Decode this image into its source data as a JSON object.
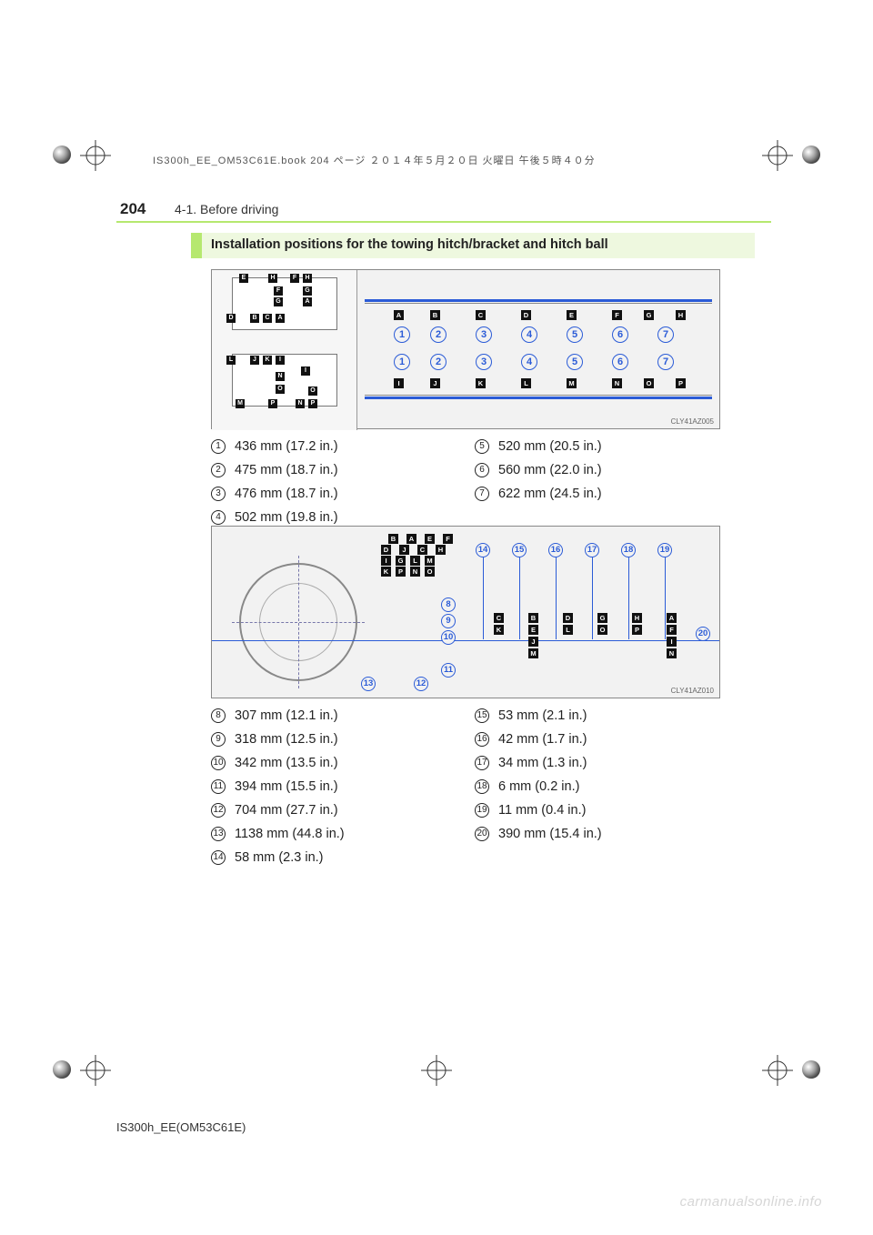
{
  "header_jp": "IS300h_EE_OM53C61E.book  204 ページ  ２０１４年５月２０日  火曜日  午後５時４０分",
  "page_number": "204",
  "section": "4-1. Before driving",
  "heading": "Installation positions for the towing hitch/bracket and hitch ball",
  "fig1": {
    "code": "CLY41AZ005",
    "top_letters": [
      "A",
      "B",
      "C",
      "D",
      "E",
      "F",
      "G",
      "H"
    ],
    "bot_letters": [
      "I",
      "J",
      "K",
      "L",
      "M",
      "N",
      "O",
      "P"
    ],
    "numbers": [
      "1",
      "2",
      "3",
      "4",
      "5",
      "6",
      "7"
    ],
    "bumper_top_letters": [
      "E",
      "H",
      "F",
      "H",
      "F",
      "G",
      "G",
      "A",
      "D",
      "B",
      "C",
      "A"
    ],
    "bumper_bot_letters": [
      "L",
      "J",
      "K",
      "I",
      "N",
      "I",
      "O",
      "M",
      "P",
      "N",
      "P",
      "O"
    ]
  },
  "fig2": {
    "code": "CLY41AZ010",
    "top_circles": [
      "14",
      "15",
      "16",
      "17",
      "18",
      "19"
    ],
    "right_circle": "20",
    "left_circles": [
      "8",
      "9",
      "10",
      "11"
    ],
    "bottom_circles": [
      "12",
      "13"
    ],
    "top_grid_letters": [
      "B",
      "A",
      "E",
      "F",
      "D",
      "J",
      "C",
      "H",
      "I",
      "G",
      "L",
      "M",
      "K",
      "P",
      "N",
      "O"
    ],
    "lower_letters_row1": [
      "C",
      "B",
      "D",
      "G",
      "H",
      "A"
    ],
    "lower_letters_row2": [
      "K",
      "E",
      "L",
      "O",
      "P",
      "F"
    ],
    "lower_letters_col": [
      "J",
      "M",
      "I",
      "N"
    ]
  },
  "measurements": {
    "list1_left": [
      {
        "n": "1",
        "t": "436 mm (17.2 in.)"
      },
      {
        "n": "2",
        "t": "475 mm (18.7 in.)"
      },
      {
        "n": "3",
        "t": "476 mm (18.7 in.)"
      },
      {
        "n": "4",
        "t": "502 mm (19.8 in.)"
      }
    ],
    "list1_right": [
      {
        "n": "5",
        "t": "520 mm (20.5 in.)"
      },
      {
        "n": "6",
        "t": "560 mm (22.0 in.)"
      },
      {
        "n": "7",
        "t": "622 mm (24.5 in.)"
      }
    ],
    "list2_left": [
      {
        "n": "8",
        "t": "307 mm (12.1 in.)"
      },
      {
        "n": "9",
        "t": "318 mm (12.5 in.)"
      },
      {
        "n": "10",
        "t": "342 mm (13.5 in.)"
      },
      {
        "n": "11",
        "t": "394 mm (15.5 in.)"
      },
      {
        "n": "12",
        "t": "704 mm (27.7 in.)"
      },
      {
        "n": "13",
        "t": "1138 mm (44.8 in.)"
      },
      {
        "n": "14",
        "t": "58 mm (2.3 in.)"
      }
    ],
    "list2_right": [
      {
        "n": "15",
        "t": "53 mm (2.1 in.)"
      },
      {
        "n": "16",
        "t": "42 mm (1.7 in.)"
      },
      {
        "n": "17",
        "t": "34 mm (1.3 in.)"
      },
      {
        "n": "18",
        "t": "6 mm (0.2 in.)"
      },
      {
        "n": "19",
        "t": "11 mm (0.4 in.)"
      },
      {
        "n": "20",
        "t": "390 mm (15.4 in.)"
      }
    ]
  },
  "footer_model": "IS300h_EE(OM53C61E)",
  "watermark": "carmanualsonline.info",
  "colors": {
    "accent_green": "#b6e86f",
    "heading_bg": "#eef8df",
    "diagram_blue": "#2a5bd7",
    "fig_bg": "#f2f2f2",
    "text": "#222222"
  }
}
